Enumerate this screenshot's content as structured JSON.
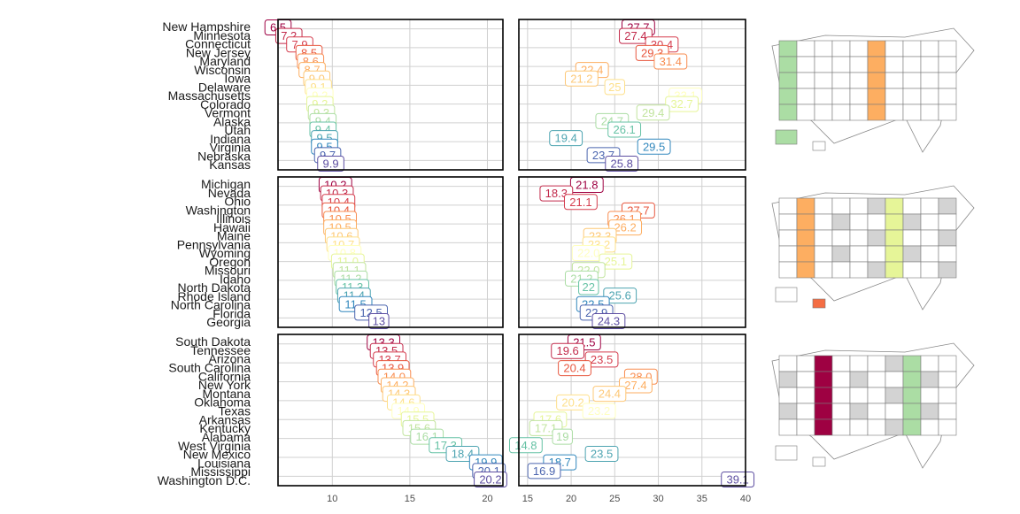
{
  "chart_data": [
    {
      "type": "scatter",
      "panel": "row-1-col-1",
      "xlim": [
        6.5,
        21
      ],
      "x_ticks": [
        "10",
        "15",
        "20"
      ],
      "grid": true,
      "categories": [
        "New Hampshire",
        "Minnesota",
        "Connecticut",
        "New Jersey",
        "Maryland",
        "Wisconsin",
        "Iowa",
        "Delaware",
        "Massachusetts",
        "Colorado",
        "Vermont",
        "Alaska",
        "Utah",
        "Indiana",
        "Virginia",
        "Nebraska",
        "Kansas"
      ],
      "values": [
        6.5,
        7.2,
        7.9,
        8.5,
        8.6,
        8.7,
        9.0,
        9.1,
        9.2,
        9.2,
        9.3,
        9.4,
        9.4,
        9.5,
        9.5,
        9.7,
        9.9
      ],
      "labels": [
        "6.5",
        "7.2",
        "7.9",
        "8.5",
        "8.6",
        "8.7",
        "9.0",
        "9.1",
        "9.2",
        "9.2",
        "9.3",
        "9.4",
        "9.4",
        "9.5",
        "9.5",
        "9.7",
        "9.9"
      ]
    },
    {
      "type": "scatter",
      "panel": "row-1-col-2",
      "xlim": [
        14,
        40
      ],
      "x_ticks": [
        "15",
        "20",
        "25",
        "30",
        "35",
        "40"
      ],
      "grid": true,
      "values": [
        27.7,
        27.4,
        30.4,
        29.3,
        31.4,
        22.4,
        21.2,
        25.0,
        33.1,
        32.7,
        29.4,
        24.7,
        26.1,
        19.4,
        29.5,
        23.7,
        25.8
      ],
      "labels": [
        "27.7",
        "27.4",
        "30.4",
        "29.3",
        "31.4",
        "22.4",
        "21.2",
        "25",
        "33.1",
        "32.7",
        "29.4",
        "24.7",
        "26.1",
        "19.4",
        "29.5",
        "23.7",
        "25.8"
      ]
    },
    {
      "type": "scatter",
      "panel": "row-2-col-1",
      "xlim": [
        6.5,
        21
      ],
      "grid": true,
      "categories": [
        "Michigan",
        "Nevada",
        "Ohio",
        "Washington",
        "Illinois",
        "Hawaii",
        "Maine",
        "Pennsylvania",
        "Wyoming",
        "Oregon",
        "Missouri",
        "Idaho",
        "North Dakota",
        "Rhode Island",
        "North Carolina",
        "Florida",
        "Georgia"
      ],
      "values": [
        10.2,
        10.3,
        10.4,
        10.4,
        10.5,
        10.5,
        10.6,
        10.7,
        10.8,
        11.0,
        11.1,
        11.2,
        11.3,
        11.4,
        11.5,
        12.5,
        13.0
      ],
      "labels": [
        "10.2",
        "10.3",
        "10.4",
        "10.4",
        "10.5",
        "10.5",
        "10.6",
        "10.7",
        "10.8",
        "11.0",
        "11.1",
        "11.2",
        "11.3",
        "11.4",
        "11.5",
        "12.5",
        "13"
      ]
    },
    {
      "type": "scatter",
      "panel": "row-2-col-2",
      "xlim": [
        14,
        40
      ],
      "grid": true,
      "values": [
        21.8,
        18.3,
        21.1,
        27.7,
        26.1,
        26.2,
        23.3,
        23.2,
        22.0,
        25.1,
        22.0,
        21.2,
        22.0,
        25.6,
        22.5,
        22.9,
        24.3
      ],
      "labels": [
        "21.8",
        "18.3",
        "21.1",
        "27.7",
        "26.1",
        "26.2",
        "23.3",
        "23.2",
        "22.0",
        "25.1",
        "22.0",
        "21.2",
        "22",
        "25.6",
        "22.5",
        "22.9",
        "24.3"
      ]
    },
    {
      "type": "scatter",
      "panel": "row-3-col-1",
      "xlim": [
        6.5,
        21
      ],
      "grid": true,
      "x_ticks": [
        "10",
        "15",
        "20"
      ],
      "categories": [
        "South Dakota",
        "Tennessee",
        "Arizona",
        "South Carolina",
        "California",
        "New York",
        "Montana",
        "Oklahoma",
        "Texas",
        "Arkansas",
        "Kentucky",
        "Alabama",
        "West Virginia",
        "New Mexico",
        "Louisiana",
        "Mississippi",
        "Washington D.C."
      ],
      "values": [
        13.3,
        13.5,
        13.7,
        13.9,
        14.0,
        14.2,
        14.3,
        14.6,
        14.9,
        15.5,
        15.6,
        16.1,
        17.3,
        18.4,
        19.9,
        20.1,
        20.2
      ],
      "labels": [
        "13.3",
        "13.5",
        "13.7",
        "13.9",
        "14.0",
        "14.2",
        "14.3",
        "14.6",
        "14.9",
        "15.5",
        "15.6",
        "16.1",
        "17.3",
        "18.4",
        "19.9",
        "20.1",
        "20.2"
      ]
    },
    {
      "type": "scatter",
      "panel": "row-3-col-2",
      "xlim": [
        14,
        40
      ],
      "grid": true,
      "x_ticks": [
        "15",
        "20",
        "25",
        "30",
        "35",
        "40"
      ],
      "values": [
        21.5,
        19.6,
        23.5,
        20.4,
        28.0,
        27.4,
        24.4,
        20.2,
        23.2,
        17.6,
        17.1,
        19.0,
        14.8,
        23.5,
        18.7,
        16.9,
        39.1
      ],
      "labels": [
        "21.5",
        "19.6",
        "23.5",
        "20.4",
        "28.0",
        "27.4",
        "24.4",
        "20.2",
        "23.2",
        "17.6",
        "17.1",
        "19",
        "14.8",
        "23.5",
        "18.7",
        "16.9",
        "39.1"
      ]
    }
  ],
  "palette": [
    "#9E0142",
    "#C22A4B",
    "#D53E4F",
    "#E8573F",
    "#F46D43",
    "#F88D51",
    "#FDAE61",
    "#FDC877",
    "#FEE08B",
    "#FFFFBF",
    "#E6F598",
    "#C1E49E",
    "#ABDDA4",
    "#7FCAA6",
    "#66C2A5",
    "#4DA4B1",
    "#3288BD",
    "#4B65AF",
    "#5E4FA2"
  ],
  "map_fills": [
    {
      "states": [
        [
          "#FFFFBF",
          "#E6F598"
        ],
        [
          "#ABDDA4",
          "#66C2A5"
        ],
        [
          "#FDAE61",
          "#D53E4F"
        ]
      ]
    }
  ]
}
